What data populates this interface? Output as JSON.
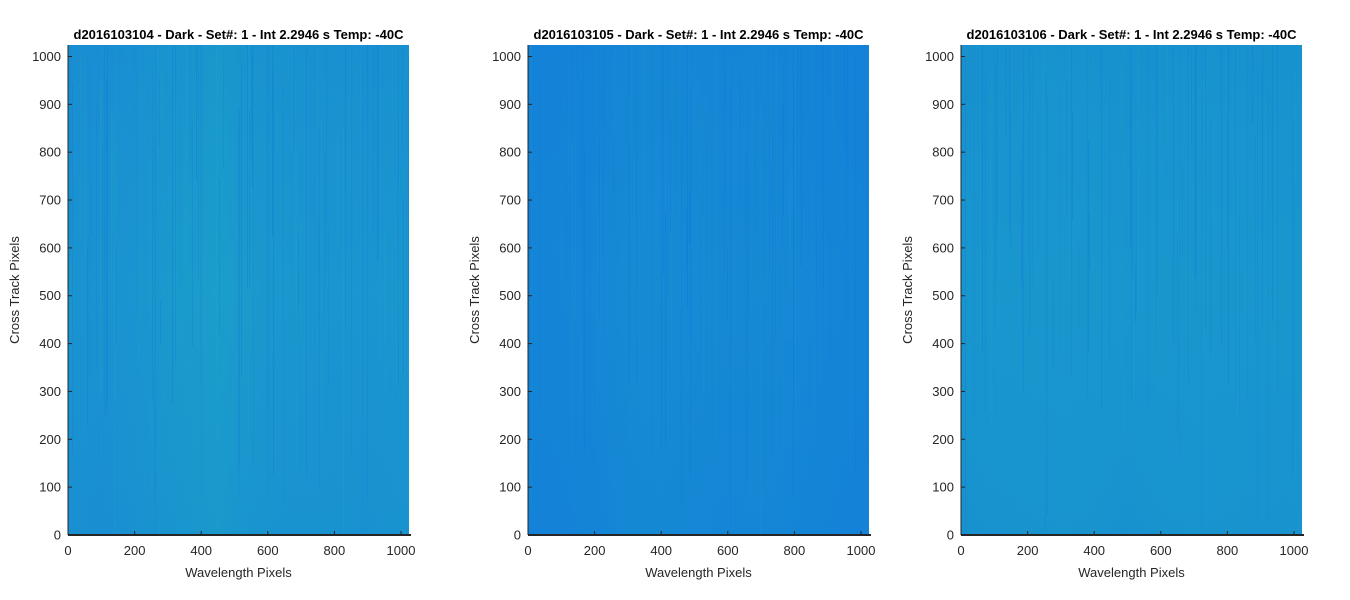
{
  "chart_data": [
    {
      "type": "heatmap",
      "title": "d2016103104 - Dark - Set#: 1 - Int 2.2946 s Temp: -40C",
      "xlabel": "Wavelength Pixels",
      "ylabel": "Cross Track Pixels",
      "xlim": [
        0,
        1024
      ],
      "ylim": [
        0,
        1024
      ],
      "xticks": [
        0,
        200,
        400,
        600,
        800,
        1000
      ],
      "yticks": [
        0,
        100,
        200,
        300,
        400,
        500,
        600,
        700,
        800,
        900,
        1000
      ],
      "colors": {
        "base": "#1a8ad6",
        "dark": "#0f72d8",
        "light": "#1ba6c6"
      },
      "column_profile": [
        {
          "x": 0,
          "level": 0.35
        },
        {
          "x": 100,
          "level": 0.3
        },
        {
          "x": 200,
          "level": 0.4
        },
        {
          "x": 300,
          "level": 0.55
        },
        {
          "x": 400,
          "level": 0.65
        },
        {
          "x": 450,
          "level": 0.72
        },
        {
          "x": 500,
          "level": 0.62
        },
        {
          "x": 600,
          "level": 0.5
        },
        {
          "x": 700,
          "level": 0.45
        },
        {
          "x": 800,
          "level": 0.42
        },
        {
          "x": 900,
          "level": 0.4
        },
        {
          "x": 1024,
          "level": 0.45
        }
      ],
      "grid": false
    },
    {
      "type": "heatmap",
      "title": "d2016103105 - Dark - Set#: 1 - Int 2.2946 s Temp: -40C",
      "xlabel": "Wavelength Pixels",
      "ylabel": "Cross Track Pixels",
      "xlim": [
        0,
        1024
      ],
      "ylim": [
        0,
        1024
      ],
      "xticks": [
        0,
        200,
        400,
        600,
        800,
        1000
      ],
      "yticks": [
        0,
        100,
        200,
        300,
        400,
        500,
        600,
        700,
        800,
        900,
        1000
      ],
      "colors": {
        "base": "#1380d9",
        "dark": "#0c6fdc",
        "light": "#1a98cd"
      },
      "column_profile": [
        {
          "x": 0,
          "level": 0.2
        },
        {
          "x": 100,
          "level": 0.22
        },
        {
          "x": 200,
          "level": 0.3
        },
        {
          "x": 300,
          "level": 0.45
        },
        {
          "x": 400,
          "level": 0.48
        },
        {
          "x": 500,
          "level": 0.42
        },
        {
          "x": 600,
          "level": 0.38
        },
        {
          "x": 700,
          "level": 0.4
        },
        {
          "x": 800,
          "level": 0.35
        },
        {
          "x": 900,
          "level": 0.25
        },
        {
          "x": 1024,
          "level": 0.18
        }
      ],
      "grid": false
    },
    {
      "type": "heatmap",
      "title": "d2016103106 - Dark - Set#: 1 - Int 2.2946 s Temp: -40C",
      "xlabel": "Wavelength Pixels",
      "ylabel": "Cross Track Pixels",
      "xlim": [
        0,
        1024
      ],
      "ylim": [
        0,
        1024
      ],
      "xticks": [
        0,
        200,
        400,
        600,
        800,
        1000
      ],
      "yticks": [
        0,
        100,
        200,
        300,
        400,
        500,
        600,
        700,
        800,
        900,
        1000
      ],
      "colors": {
        "base": "#178bd4",
        "dark": "#0f76d6",
        "light": "#1aa3c6"
      },
      "column_profile": [
        {
          "x": 0,
          "level": 0.45
        },
        {
          "x": 100,
          "level": 0.48
        },
        {
          "x": 200,
          "level": 0.5
        },
        {
          "x": 300,
          "level": 0.52
        },
        {
          "x": 400,
          "level": 0.5
        },
        {
          "x": 500,
          "level": 0.45
        },
        {
          "x": 600,
          "level": 0.5
        },
        {
          "x": 700,
          "level": 0.52
        },
        {
          "x": 800,
          "level": 0.5
        },
        {
          "x": 900,
          "level": 0.48
        },
        {
          "x": 1024,
          "level": 0.5
        }
      ],
      "grid": false
    }
  ]
}
